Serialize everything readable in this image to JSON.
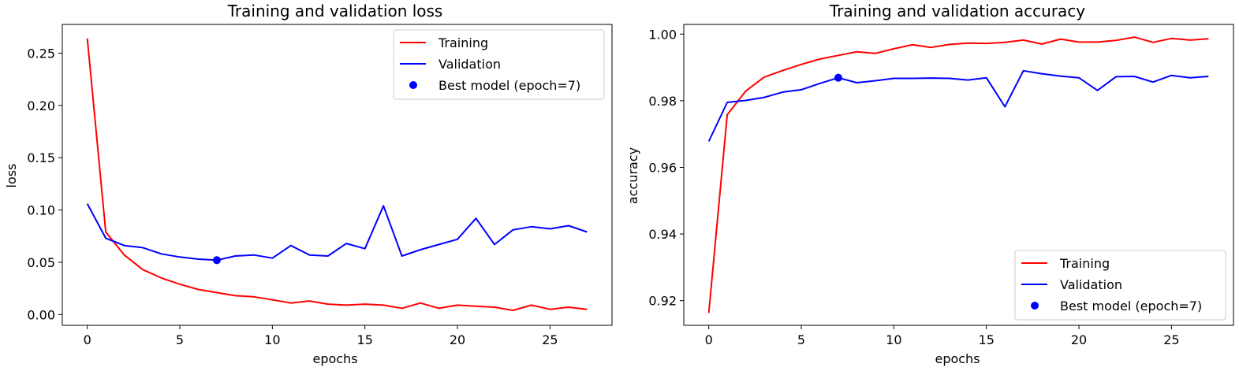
{
  "chart_data": [
    {
      "type": "line",
      "title": "Training and validation loss",
      "xlabel": "epochs",
      "ylabel": "loss",
      "xlim": [
        -1.35,
        28.35
      ],
      "ylim": [
        -0.0103,
        0.2775
      ],
      "xticks": [
        0,
        5,
        10,
        15,
        20,
        25
      ],
      "xtick_labels": [
        "0",
        "5",
        "10",
        "15",
        "20",
        "25"
      ],
      "yticks": [
        0.0,
        0.05,
        0.1,
        0.15,
        0.2,
        0.25
      ],
      "ytick_labels": [
        "0.00",
        "0.05",
        "0.10",
        "0.15",
        "0.20",
        "0.25"
      ],
      "grid": false,
      "legend_position": "top-right",
      "x": [
        0,
        1,
        2,
        3,
        4,
        5,
        6,
        7,
        8,
        9,
        10,
        11,
        12,
        13,
        14,
        15,
        16,
        17,
        18,
        19,
        20,
        21,
        22,
        23,
        24,
        25,
        26,
        27
      ],
      "series": [
        {
          "name": "Training",
          "color": "#ff0000",
          "values": [
            0.264,
            0.079,
            0.057,
            0.043,
            0.035,
            0.029,
            0.024,
            0.021,
            0.018,
            0.017,
            0.014,
            0.011,
            0.013,
            0.01,
            0.009,
            0.01,
            0.009,
            0.006,
            0.011,
            0.006,
            0.009,
            0.008,
            0.007,
            0.004,
            0.009,
            0.005,
            0.007,
            0.005
          ]
        },
        {
          "name": "Validation",
          "color": "#0000ff",
          "values": [
            0.106,
            0.073,
            0.066,
            0.064,
            0.058,
            0.055,
            0.053,
            0.052,
            0.056,
            0.057,
            0.054,
            0.066,
            0.057,
            0.056,
            0.068,
            0.063,
            0.104,
            0.056,
            0.062,
            0.067,
            0.072,
            0.092,
            0.067,
            0.081,
            0.084,
            0.082,
            0.085,
            0.079
          ]
        }
      ],
      "marker": {
        "name": "Best model (epoch=7)",
        "color": "#0000ff",
        "x": 7,
        "y": 0.052
      }
    },
    {
      "type": "line",
      "title": "Training and validation accuracy",
      "xlabel": "epochs",
      "ylabel": "accuracy",
      "xlim": [
        -1.35,
        28.35
      ],
      "ylim": [
        0.9126,
        1.0029
      ],
      "xticks": [
        0,
        5,
        10,
        15,
        20,
        25
      ],
      "xtick_labels": [
        "0",
        "5",
        "10",
        "15",
        "20",
        "25"
      ],
      "yticks": [
        0.92,
        0.94,
        0.96,
        0.98,
        1.0
      ],
      "ytick_labels": [
        "0.92",
        "0.94",
        "0.96",
        "0.98",
        "1.00"
      ],
      "grid": false,
      "legend_position": "bottom-right",
      "x": [
        0,
        1,
        2,
        3,
        4,
        5,
        6,
        7,
        8,
        9,
        10,
        11,
        12,
        13,
        14,
        15,
        16,
        17,
        18,
        19,
        20,
        21,
        22,
        23,
        24,
        25,
        26,
        27
      ],
      "series": [
        {
          "name": "Training",
          "color": "#ff0000",
          "values": [
            0.9163,
            0.9758,
            0.9829,
            0.9871,
            0.9891,
            0.9909,
            0.9925,
            0.9936,
            0.9947,
            0.9942,
            0.9956,
            0.9968,
            0.996,
            0.9969,
            0.9973,
            0.9972,
            0.9975,
            0.9982,
            0.997,
            0.9985,
            0.9976,
            0.9976,
            0.9981,
            0.9991,
            0.9975,
            0.9987,
            0.9982,
            0.9986
          ]
        },
        {
          "name": "Validation",
          "color": "#0000ff",
          "values": [
            0.9678,
            0.9795,
            0.9801,
            0.981,
            0.9826,
            0.9833,
            0.9852,
            0.9869,
            0.9854,
            0.986,
            0.9867,
            0.9867,
            0.9868,
            0.9867,
            0.9862,
            0.9869,
            0.9782,
            0.989,
            0.9881,
            0.9874,
            0.9869,
            0.9831,
            0.9872,
            0.9873,
            0.9856,
            0.9876,
            0.9869,
            0.9873
          ]
        }
      ],
      "marker": {
        "name": "Best model (epoch=7)",
        "color": "#0000ff",
        "x": 7,
        "y": 0.9869
      }
    }
  ]
}
